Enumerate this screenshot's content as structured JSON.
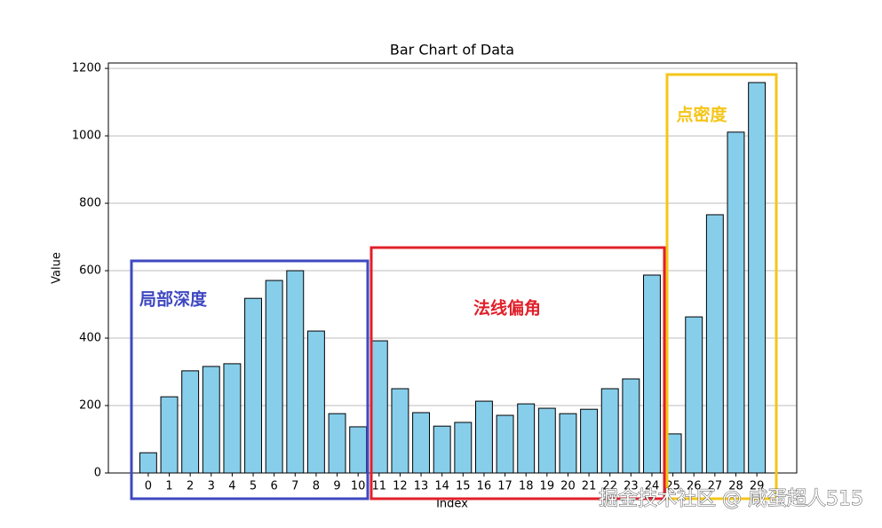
{
  "chart_data": {
    "type": "bar",
    "title": "Bar Chart of Data",
    "xlabel": "Index",
    "ylabel": "Value",
    "categories": [
      "0",
      "1",
      "2",
      "3",
      "4",
      "5",
      "6",
      "7",
      "8",
      "9",
      "10",
      "11",
      "12",
      "13",
      "14",
      "15",
      "16",
      "17",
      "18",
      "19",
      "20",
      "21",
      "22",
      "23",
      "24",
      "25",
      "26",
      "27",
      "28",
      "29"
    ],
    "values": [
      60,
      226,
      303,
      316,
      324,
      518,
      571,
      600,
      421,
      176,
      137,
      392,
      250,
      179,
      139,
      150,
      213,
      171,
      205,
      192,
      176,
      189,
      250,
      279,
      587,
      116,
      463,
      766,
      1011,
      1158
    ],
    "color": "#87ceeb",
    "edgecolor": "#000000",
    "ylim": [
      0,
      1216
    ],
    "yticks": [
      0,
      200,
      400,
      600,
      800,
      1000,
      1200
    ],
    "grid": true,
    "annotations": [
      {
        "text": "局部深度",
        "color": "#3f48c0"
      },
      {
        "text": "法线偏角",
        "color": "#e0202a"
      },
      {
        "text": "点密度",
        "color": "#f5c518"
      }
    ]
  },
  "watermark": "掘金技术社区 @ 咸蛋超人515"
}
